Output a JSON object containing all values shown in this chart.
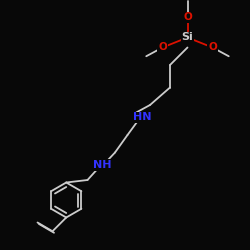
{
  "bg_color": "#080808",
  "bond_color": "#cccccc",
  "nh_color": "#3333ff",
  "si_color": "#cccccc",
  "o_color": "#dd1100",
  "lw": 1.3,
  "figsize": [
    2.5,
    2.5
  ],
  "dpi": 100,
  "xlim": [
    0,
    10
  ],
  "ylim": [
    0,
    10
  ]
}
